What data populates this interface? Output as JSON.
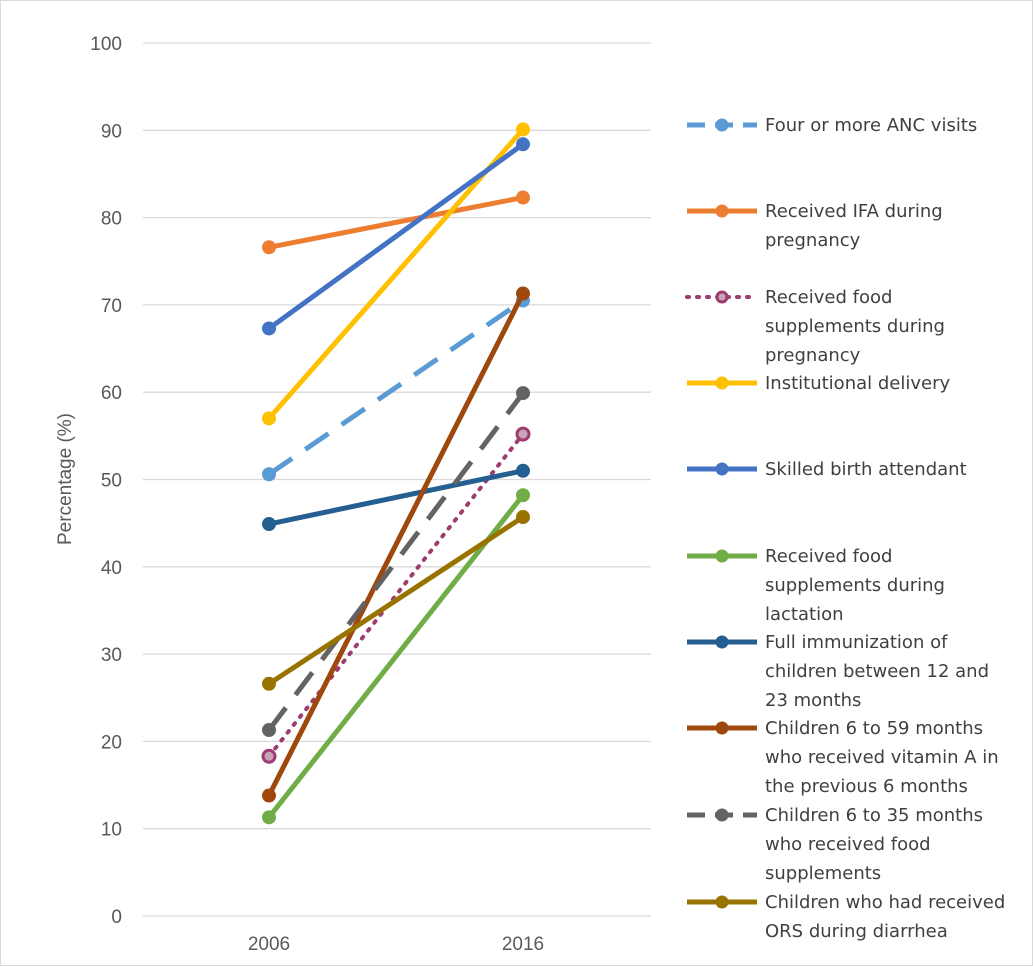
{
  "chart_data": {
    "type": "line",
    "categories": [
      "2006",
      "2016"
    ],
    "ylabel": "Percentage (%)",
    "xlabel": "",
    "ylim": [
      0,
      100
    ],
    "yticks": [
      0,
      10,
      20,
      30,
      40,
      50,
      60,
      70,
      80,
      90,
      100
    ],
    "grid": true,
    "legend_position": "right",
    "series": [
      {
        "name": "Four or more  ANC visits",
        "values": [
          50.6,
          70.5
        ],
        "color": "#5b9bd5",
        "style": "dashed"
      },
      {
        "name": "Received IFA during pregnancy",
        "values": [
          76.6,
          82.3
        ],
        "color": "#ed7d31",
        "style": "solid"
      },
      {
        "name": "Received food supplements during pregnancy",
        "values": [
          18.3,
          55.2
        ],
        "color": "#9e3c6f",
        "style": "dotted"
      },
      {
        "name": "Institutional delivery",
        "values": [
          57.0,
          90.1
        ],
        "color": "#ffc000",
        "style": "solid"
      },
      {
        "name": "Skilled birth attendant",
        "values": [
          67.3,
          88.4
        ],
        "color": "#4472c4",
        "style": "solid"
      },
      {
        "name": "Received food supplements during lactation",
        "values": [
          11.3,
          48.2
        ],
        "color": "#70ad47",
        "style": "solid"
      },
      {
        "name": "Full immunization of children between 12 and 23 months",
        "values": [
          44.9,
          51.0
        ],
        "color": "#255e91",
        "style": "solid"
      },
      {
        "name": "Children 6 to 59 months who received vitamin A in the previous 6 months",
        "values": [
          13.8,
          71.3
        ],
        "color": "#9e480e",
        "style": "solid"
      },
      {
        "name": "Children 6 to 35 months who received food supplements",
        "values": [
          21.3,
          59.9
        ],
        "color": "#636363",
        "style": "dashed"
      },
      {
        "name": "Children who had received ORS  during diarrhea",
        "values": [
          26.6,
          45.7
        ],
        "color": "#997300",
        "style": "solid"
      }
    ],
    "legend_lines": [
      [
        "Four or more  ANC visits"
      ],
      [
        "Received IFA during",
        "pregnancy"
      ],
      [
        "Received food",
        "supplements during",
        "pregnancy"
      ],
      [
        "Institutional delivery"
      ],
      [
        "Skilled birth attendant"
      ],
      [
        "Received food",
        "supplements during",
        "lactation"
      ],
      [
        "Full immunization of",
        "children between 12 and",
        "23 months"
      ],
      [
        "Children 6 to 59 months",
        "who received vitamin A in",
        "the previous 6 months"
      ],
      [
        "Children 6 to 35 months",
        "who received food",
        "supplements"
      ],
      [
        "Children who had received",
        "ORS  during diarrhea"
      ]
    ]
  }
}
